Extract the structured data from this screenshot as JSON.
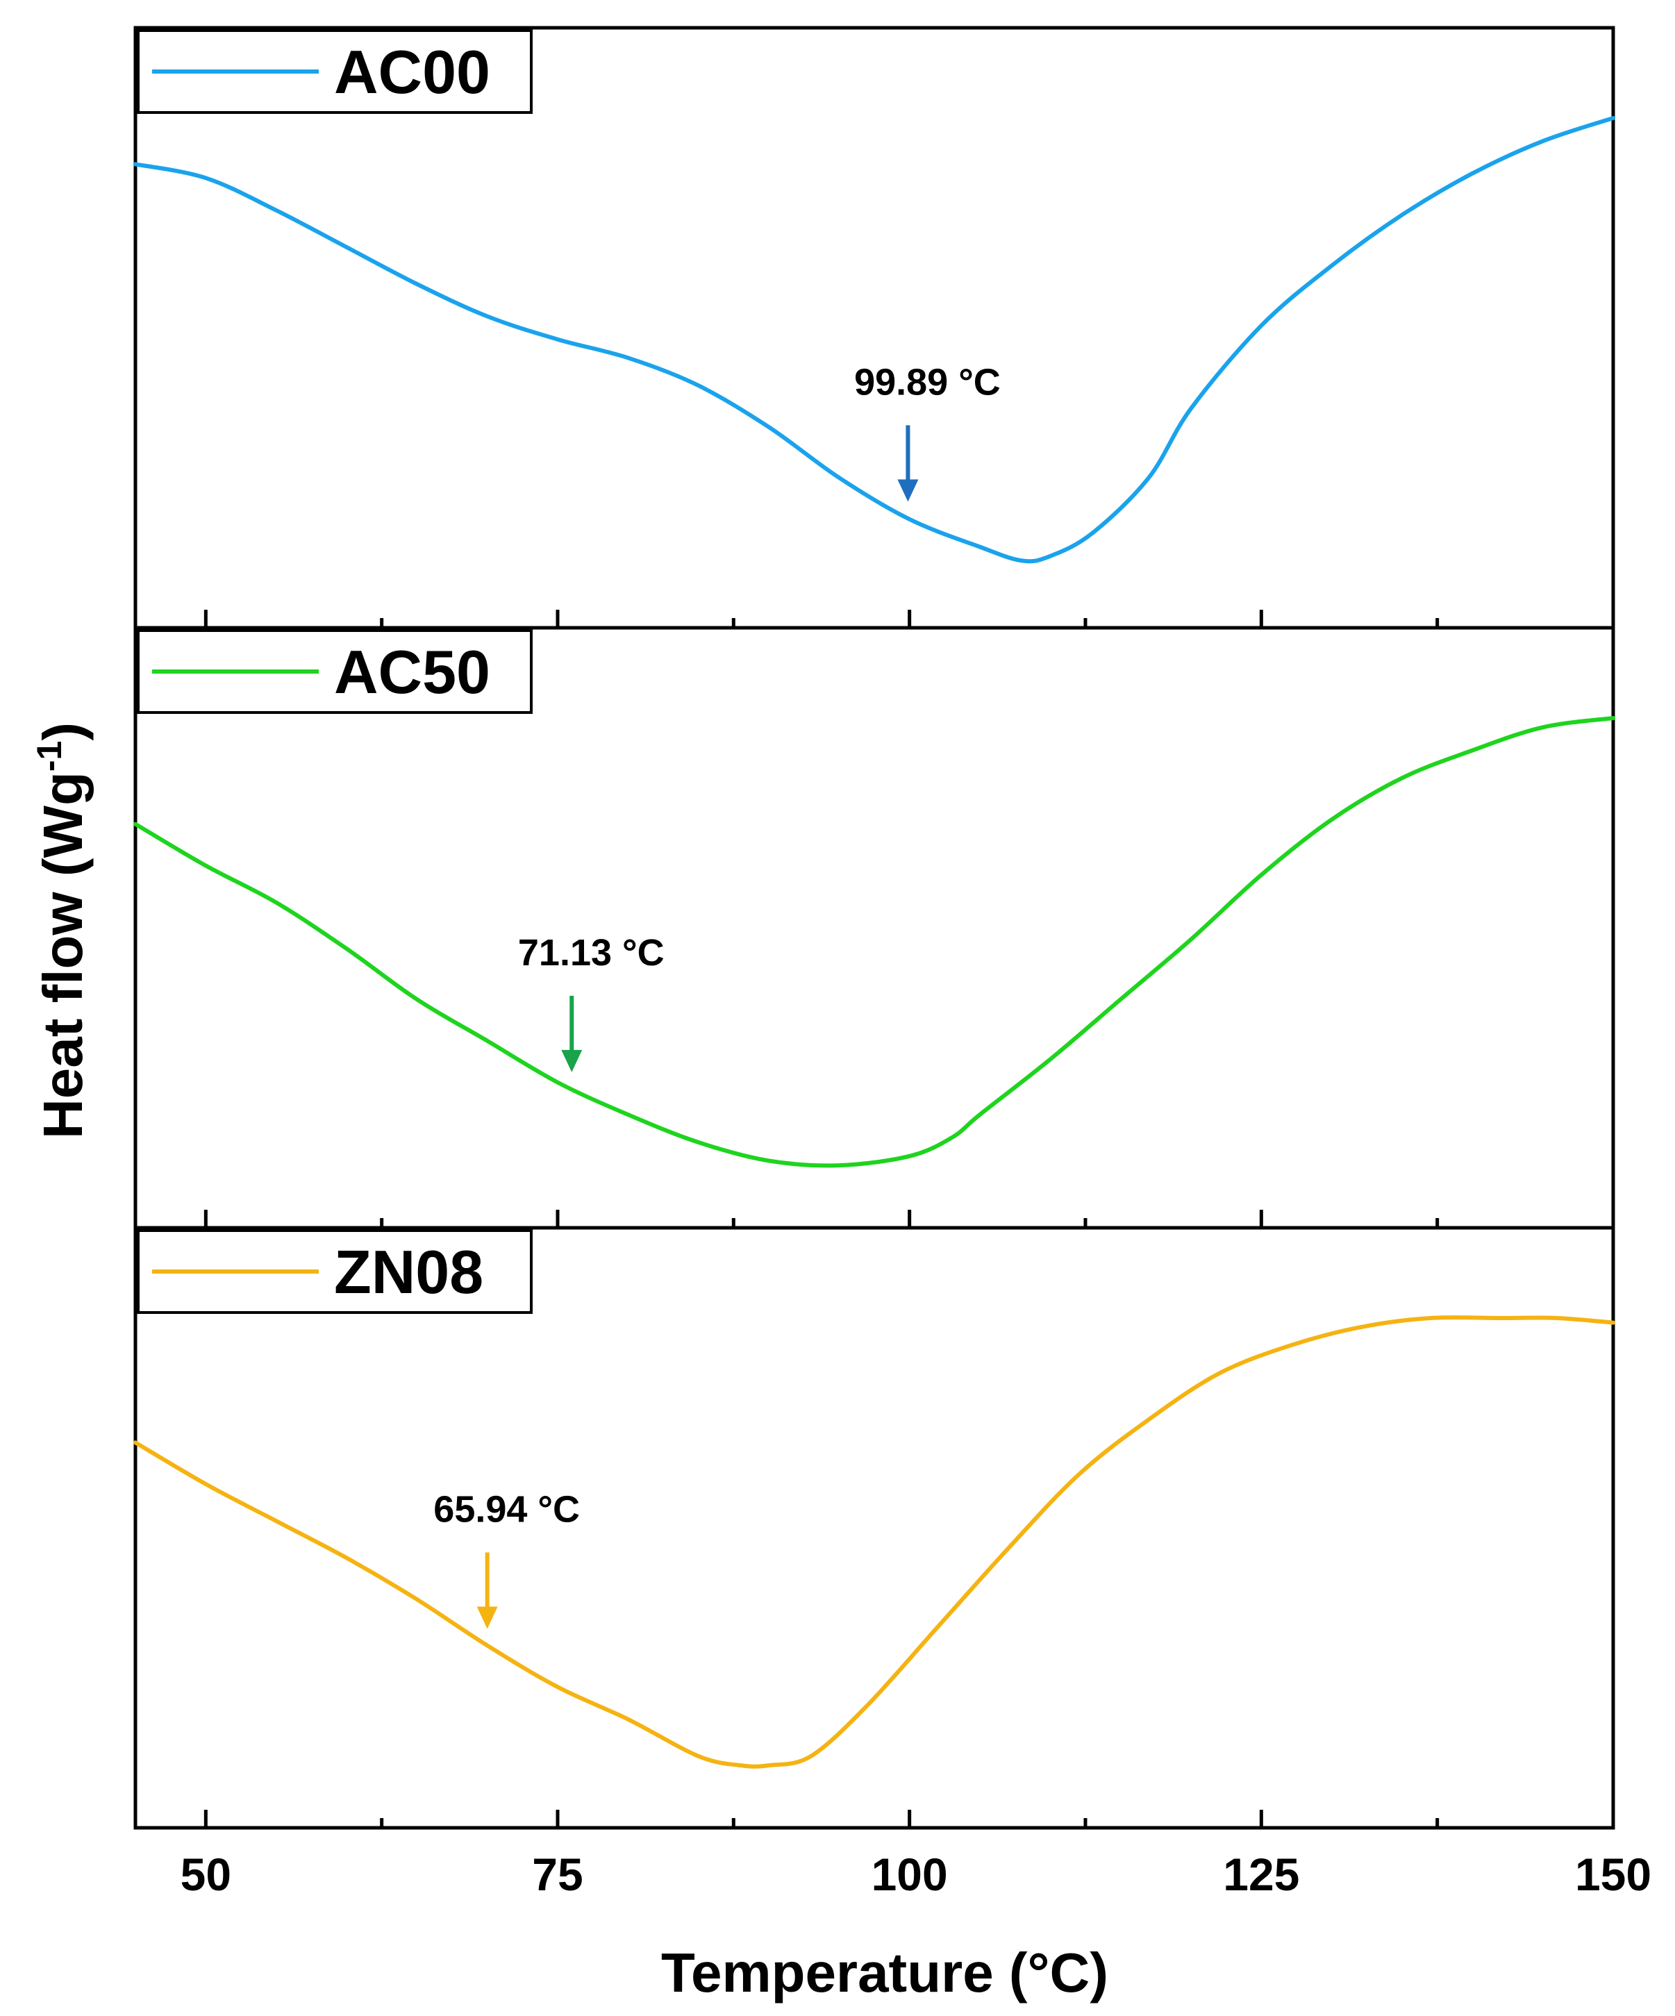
{
  "chart_data": {
    "type": "line",
    "layout": "stacked-panels",
    "xlabel": "Temperature (°C)",
    "ylabel_main": "Heat flow (Wg",
    "ylabel_sup": "-1",
    "ylabel_close": ")",
    "xlim": [
      45,
      150
    ],
    "x_ticks": [
      50,
      75,
      100,
      125,
      150
    ],
    "x_minor_ticks": [
      62.5,
      87.5,
      112.5,
      137.5
    ],
    "panels": [
      {
        "name": "AC00",
        "color": "#1aa3ec",
        "arrow_color": "#1f6fbf",
        "annotation": {
          "label": "99.89 °C",
          "x": 99.89
        },
        "points": [
          [
            45,
            0.9
          ],
          [
            50,
            0.87
          ],
          [
            55,
            0.8
          ],
          [
            60,
            0.72
          ],
          [
            65,
            0.64
          ],
          [
            70,
            0.57
          ],
          [
            75,
            0.52
          ],
          [
            80,
            0.48
          ],
          [
            85,
            0.42
          ],
          [
            90,
            0.33
          ],
          [
            95,
            0.22
          ],
          [
            100,
            0.13
          ],
          [
            105,
            0.07
          ],
          [
            108,
            0.04
          ],
          [
            110,
            0.05
          ],
          [
            113,
            0.1
          ],
          [
            117,
            0.22
          ],
          [
            120,
            0.37
          ],
          [
            125,
            0.55
          ],
          [
            130,
            0.68
          ],
          [
            135,
            0.79
          ],
          [
            140,
            0.88
          ],
          [
            145,
            0.95
          ],
          [
            150,
            1.0
          ]
        ]
      },
      {
        "name": "AC50",
        "color": "#1ed41e",
        "arrow_color": "#1aa34a",
        "annotation": {
          "label": "71.13 °C",
          "x": 76.0
        },
        "points": [
          [
            45,
            0.77
          ],
          [
            50,
            0.68
          ],
          [
            55,
            0.6
          ],
          [
            60,
            0.5
          ],
          [
            65,
            0.39
          ],
          [
            70,
            0.3
          ],
          [
            75,
            0.21
          ],
          [
            80,
            0.14
          ],
          [
            85,
            0.08
          ],
          [
            90,
            0.04
          ],
          [
            95,
            0.03
          ],
          [
            100,
            0.05
          ],
          [
            103,
            0.09
          ],
          [
            105,
            0.14
          ],
          [
            110,
            0.26
          ],
          [
            115,
            0.39
          ],
          [
            120,
            0.52
          ],
          [
            125,
            0.66
          ],
          [
            130,
            0.78
          ],
          [
            135,
            0.87
          ],
          [
            140,
            0.93
          ],
          [
            145,
            0.98
          ],
          [
            150,
            1.0
          ]
        ]
      },
      {
        "name": "ZN08",
        "color": "#f5b312",
        "arrow_color": "#f5b312",
        "annotation": {
          "label": "65.94 °C",
          "x": 70.0
        },
        "points": [
          [
            45,
            0.73
          ],
          [
            50,
            0.64
          ],
          [
            55,
            0.56
          ],
          [
            60,
            0.48
          ],
          [
            65,
            0.39
          ],
          [
            70,
            0.29
          ],
          [
            75,
            0.2
          ],
          [
            80,
            0.13
          ],
          [
            85,
            0.05
          ],
          [
            88,
            0.03
          ],
          [
            90,
            0.03
          ],
          [
            93,
            0.05
          ],
          [
            97,
            0.16
          ],
          [
            102,
            0.33
          ],
          [
            107,
            0.5
          ],
          [
            112,
            0.66
          ],
          [
            117,
            0.78
          ],
          [
            122,
            0.88
          ],
          [
            127,
            0.94
          ],
          [
            132,
            0.98
          ],
          [
            137,
            1.0
          ],
          [
            142,
            1.0
          ],
          [
            146,
            1.0
          ],
          [
            150,
            0.99
          ]
        ]
      }
    ]
  }
}
